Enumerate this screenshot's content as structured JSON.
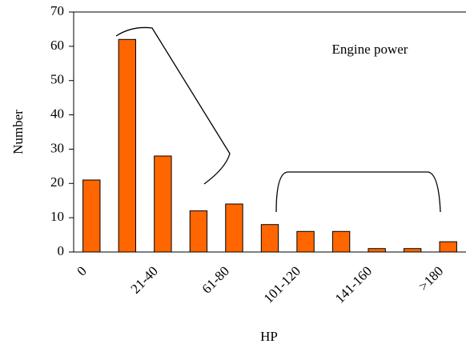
{
  "chart_data": {
    "type": "bar",
    "x_label": "HP",
    "y_label": "Number",
    "annotation": "Engine power",
    "categories": [
      "0",
      null,
      "21-40",
      null,
      "61-80",
      null,
      "101-120",
      null,
      "141-160",
      null,
      ">180"
    ],
    "values": [
      21,
      62,
      28,
      12,
      14,
      8,
      6,
      6,
      1,
      1,
      3
    ],
    "color": "#ff6600",
    "ylim": [
      0,
      70
    ],
    "yticks": [
      0,
      10,
      20,
      30,
      40,
      50,
      60,
      70
    ],
    "grid": false
  }
}
